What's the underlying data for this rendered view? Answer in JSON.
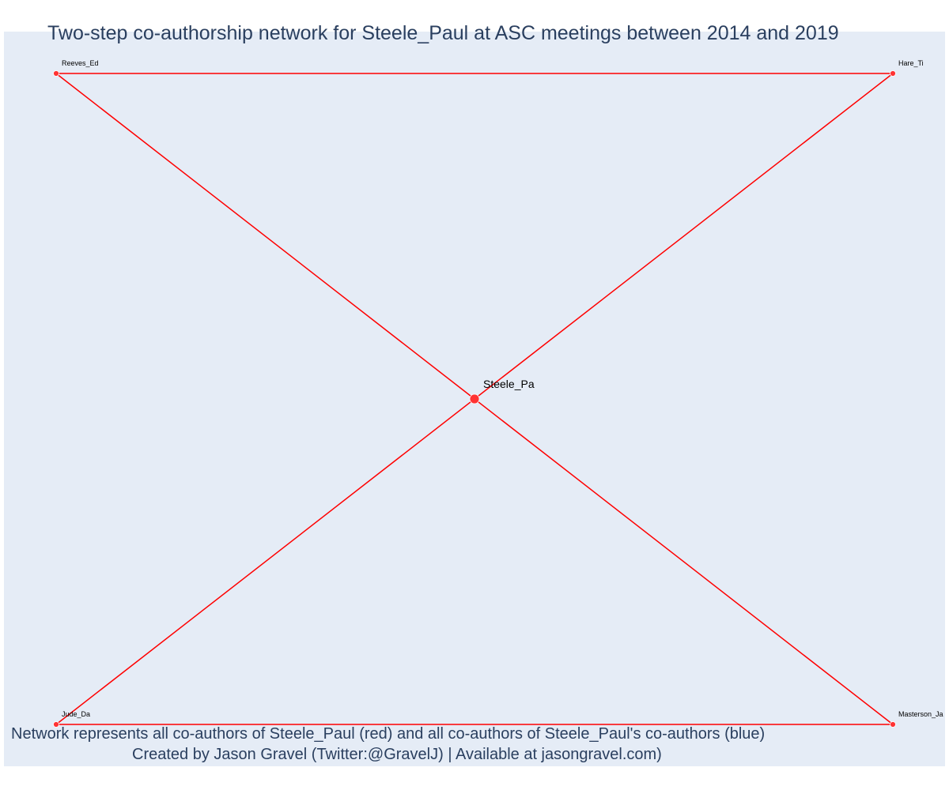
{
  "title": "Two-step co-authorship network for Steele_Paul at ASC meetings between 2014 and 2019",
  "caption": {
    "line1": "Network represents all co-authors of Steele_Paul (red) and all co-authors of Steele_Paul's co-authors (blue)",
    "line2": "Created by Jason Gravel (Twitter:@GravelJ) | Available at jasongravel.com)"
  },
  "colors": {
    "background": "#e5ecf6",
    "edge": "#ff0000",
    "node": "#ff3333",
    "text": "#2a3f5f"
  },
  "network": {
    "center": "Steele_Pa",
    "nodes": [
      {
        "id": "steele",
        "label": "Steele_Pa",
        "role": "center"
      },
      {
        "id": "reeves",
        "label": "Reeves_Ed",
        "role": "co-author"
      },
      {
        "id": "hare",
        "label": "Hare_Ti",
        "role": "co-author"
      },
      {
        "id": "jude",
        "label": "Jude_Da",
        "role": "co-author"
      },
      {
        "id": "masterson",
        "label": "Masterson_Ja",
        "role": "co-author"
      }
    ],
    "edges": [
      [
        "reeves",
        "hare"
      ],
      [
        "reeves",
        "steele"
      ],
      [
        "hare",
        "steele"
      ],
      [
        "jude",
        "steele"
      ],
      [
        "masterson",
        "steele"
      ],
      [
        "jude",
        "masterson"
      ]
    ]
  }
}
